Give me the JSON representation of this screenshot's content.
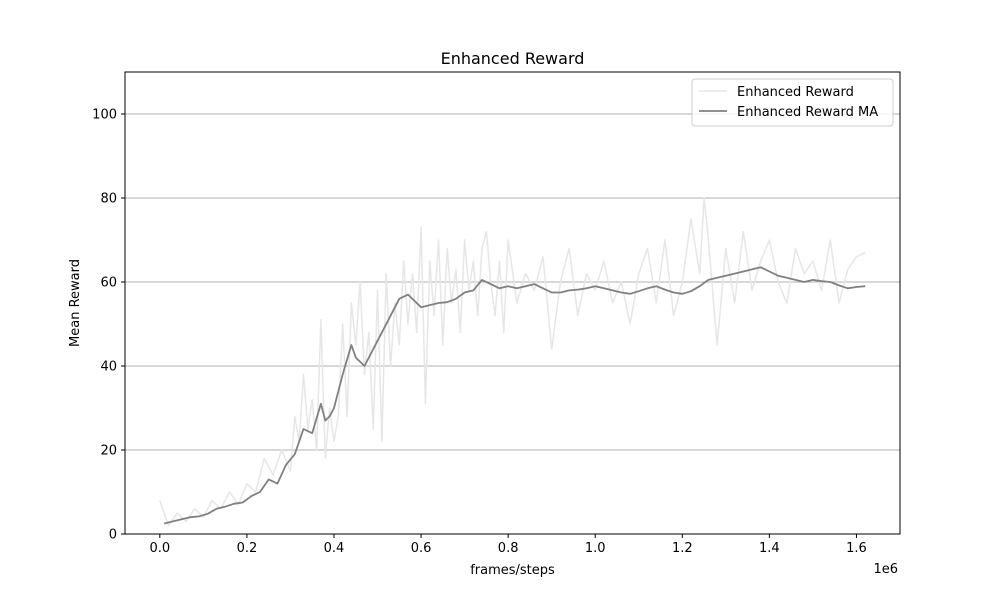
{
  "chart_data": {
    "type": "line",
    "title": "Enhanced Reward",
    "xlabel": "frames/steps",
    "ylabel": "Mean Reward",
    "x_offset_label": "1e6",
    "xlim": [
      -0.08,
      1.7
    ],
    "ylim": [
      0,
      110
    ],
    "xticks": [
      0.0,
      0.2,
      0.4,
      0.6,
      0.8,
      1.0,
      1.2,
      1.4,
      1.6
    ],
    "xtick_labels": [
      "0.0",
      "0.2",
      "0.4",
      "0.6",
      "0.8",
      "1.0",
      "1.2",
      "1.4",
      "1.6"
    ],
    "yticks": [
      0,
      20,
      40,
      60,
      80,
      100
    ],
    "ytick_labels": [
      "0",
      "20",
      "40",
      "60",
      "80",
      "100"
    ],
    "grid": "horizontal",
    "legend_position": "top-right",
    "series": [
      {
        "name": "Enhanced Reward",
        "color": "#e6e6e6",
        "x": [
          0.0,
          0.02,
          0.04,
          0.06,
          0.08,
          0.1,
          0.12,
          0.14,
          0.16,
          0.18,
          0.2,
          0.22,
          0.24,
          0.26,
          0.28,
          0.3,
          0.31,
          0.32,
          0.33,
          0.34,
          0.35,
          0.36,
          0.37,
          0.38,
          0.39,
          0.4,
          0.41,
          0.42,
          0.43,
          0.44,
          0.45,
          0.46,
          0.47,
          0.48,
          0.49,
          0.5,
          0.51,
          0.52,
          0.53,
          0.54,
          0.55,
          0.56,
          0.57,
          0.58,
          0.59,
          0.6,
          0.61,
          0.62,
          0.63,
          0.64,
          0.65,
          0.66,
          0.67,
          0.68,
          0.69,
          0.7,
          0.71,
          0.72,
          0.73,
          0.74,
          0.75,
          0.76,
          0.77,
          0.78,
          0.79,
          0.8,
          0.82,
          0.84,
          0.86,
          0.88,
          0.9,
          0.92,
          0.94,
          0.96,
          0.98,
          1.0,
          1.02,
          1.04,
          1.06,
          1.08,
          1.1,
          1.12,
          1.14,
          1.16,
          1.18,
          1.2,
          1.22,
          1.24,
          1.25,
          1.26,
          1.28,
          1.3,
          1.32,
          1.34,
          1.36,
          1.38,
          1.4,
          1.42,
          1.44,
          1.46,
          1.48,
          1.5,
          1.52,
          1.54,
          1.56,
          1.58,
          1.6,
          1.62
        ],
        "values": [
          8,
          2,
          5,
          3,
          6,
          4,
          8,
          6,
          10,
          7,
          12,
          10,
          18,
          14,
          20,
          15,
          28,
          22,
          38,
          25,
          32,
          20,
          51,
          18,
          30,
          22,
          28,
          50,
          28,
          55,
          45,
          60,
          38,
          48,
          25,
          58,
          22,
          62,
          40,
          55,
          45,
          65,
          50,
          62,
          48,
          73,
          31,
          65,
          52,
          70,
          45,
          68,
          55,
          63,
          48,
          70,
          58,
          65,
          52,
          68,
          72,
          60,
          52,
          65,
          48,
          70,
          55,
          62,
          58,
          66,
          44,
          60,
          68,
          52,
          62,
          58,
          65,
          55,
          60,
          50,
          62,
          68,
          55,
          70,
          52,
          60,
          75,
          62,
          80,
          70,
          45,
          68,
          55,
          72,
          58,
          65,
          70,
          60,
          55,
          68,
          62,
          65,
          58,
          70,
          55,
          63,
          66,
          67
        ]
      },
      {
        "name": "Enhanced Reward MA",
        "color": "#808080",
        "x": [
          0.01,
          0.03,
          0.05,
          0.07,
          0.09,
          0.11,
          0.13,
          0.15,
          0.17,
          0.19,
          0.21,
          0.23,
          0.25,
          0.27,
          0.29,
          0.31,
          0.33,
          0.35,
          0.37,
          0.38,
          0.39,
          0.4,
          0.42,
          0.44,
          0.45,
          0.47,
          0.49,
          0.51,
          0.53,
          0.55,
          0.57,
          0.59,
          0.6,
          0.62,
          0.64,
          0.66,
          0.68,
          0.7,
          0.72,
          0.74,
          0.76,
          0.78,
          0.8,
          0.82,
          0.84,
          0.86,
          0.88,
          0.9,
          0.92,
          0.94,
          0.96,
          0.98,
          1.0,
          1.02,
          1.04,
          1.06,
          1.08,
          1.1,
          1.12,
          1.14,
          1.16,
          1.18,
          1.2,
          1.22,
          1.24,
          1.26,
          1.28,
          1.3,
          1.32,
          1.34,
          1.36,
          1.38,
          1.4,
          1.42,
          1.44,
          1.46,
          1.48,
          1.5,
          1.52,
          1.54,
          1.56,
          1.58,
          1.6,
          1.62
        ],
        "values": [
          2.5,
          3,
          3.5,
          4,
          4.2,
          4.8,
          6,
          6.5,
          7.2,
          7.5,
          9,
          10,
          13,
          12,
          16.5,
          19,
          25,
          24,
          31,
          27,
          28,
          30,
          38,
          45,
          42,
          40,
          44,
          48,
          52,
          56,
          57,
          55,
          54,
          54.5,
          55,
          55.2,
          56,
          57.5,
          58,
          60.5,
          59.5,
          58.5,
          59,
          58.5,
          59,
          59.5,
          58.5,
          57.5,
          57.5,
          58,
          58.2,
          58.5,
          59,
          58.5,
          58,
          57.5,
          57.2,
          57.8,
          58.5,
          59,
          58.2,
          57.5,
          57.2,
          57.8,
          59,
          60.5,
          61,
          61.5,
          62,
          62.5,
          63,
          63.5,
          62.5,
          61.5,
          61,
          60.5,
          60,
          60.5,
          60.2,
          60,
          59.2,
          58.5,
          58.8,
          59
        ]
      }
    ]
  }
}
